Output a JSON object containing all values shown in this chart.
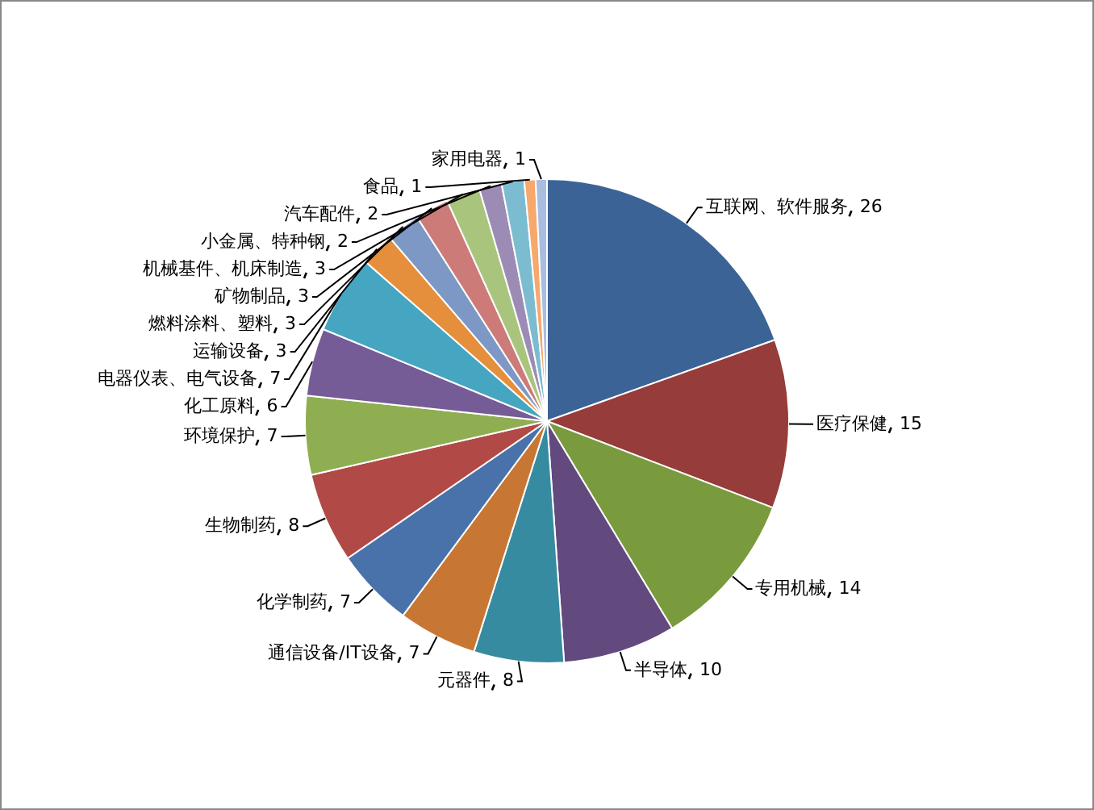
{
  "chart_data": {
    "type": "pie",
    "categories": [
      "互联网、软件服务",
      "医疗保健",
      "专用机械",
      "半导体",
      "元器件",
      "通信设备/IT设备",
      "化学制药",
      "生物制药",
      "环境保护",
      "化工原料",
      "电器仪表、电气设备",
      "运输设备",
      "燃料涂料、塑料",
      "矿物制品",
      "机械基件、机床制造",
      "小金属、特种钢",
      "汽车配件",
      "食品",
      "家用电器"
    ],
    "values": [
      26,
      15,
      14,
      10,
      8,
      7,
      7,
      8,
      7,
      6,
      7,
      3,
      3,
      3,
      3,
      2,
      2,
      1,
      1
    ],
    "colors": [
      "#3c6396",
      "#963c3a",
      "#7a9a3e",
      "#624a7e",
      "#378ba1",
      "#c77733",
      "#4a72aa",
      "#b14a47",
      "#8fae52",
      "#765c96",
      "#46a5c0",
      "#e58f3c",
      "#7d98c5",
      "#cc7b79",
      "#a9c57d",
      "#9c8cb5",
      "#7bbcd1",
      "#f6a86d",
      "#a8bde0"
    ],
    "data_labels": true,
    "legend": false
  }
}
